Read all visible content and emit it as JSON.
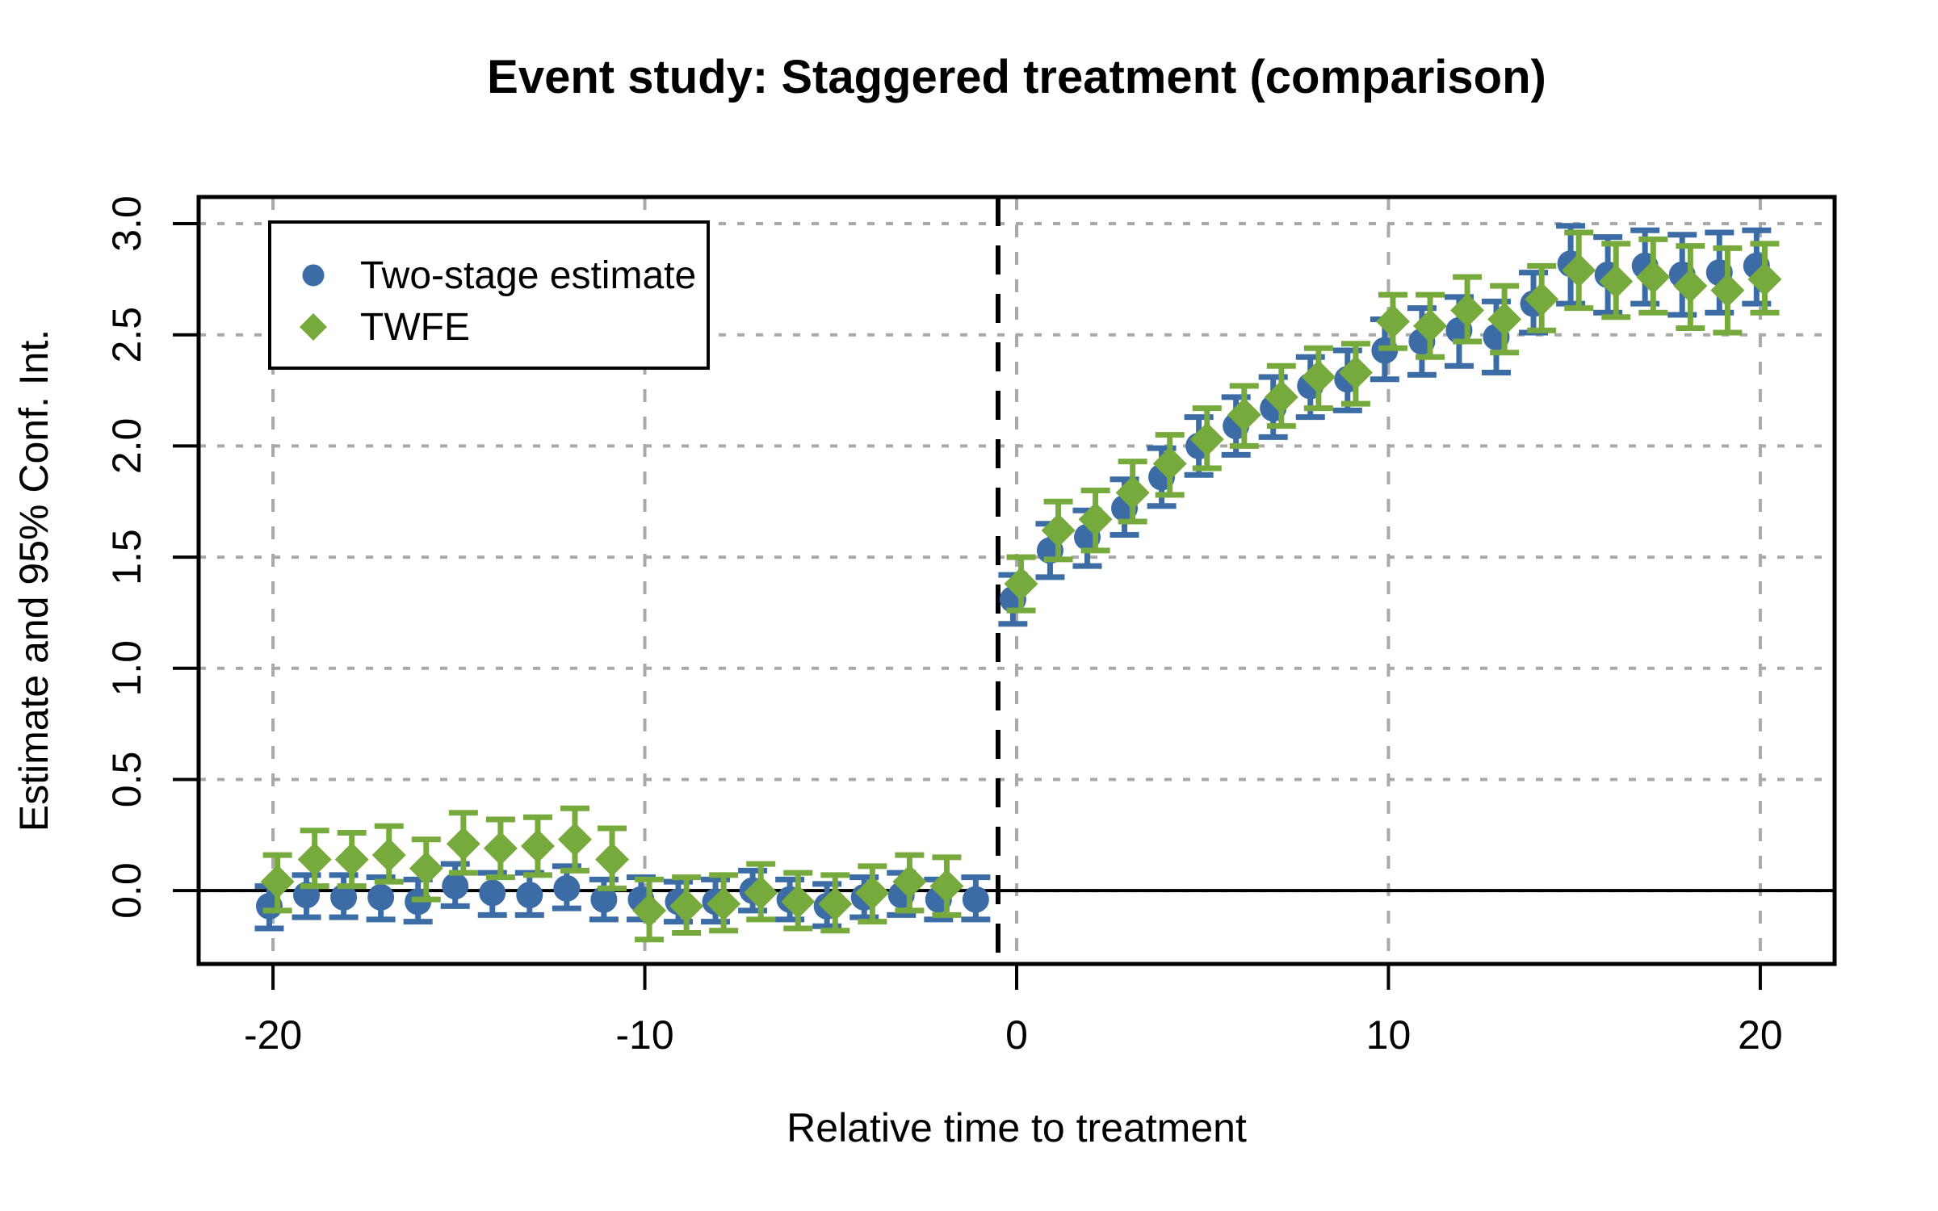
{
  "chart_data": {
    "type": "scatter",
    "title": "Event study: Staggered treatment (comparison)",
    "xlabel": "Relative time to treatment",
    "ylabel": "Estimate and 95% Conf. Int.",
    "xlim": [
      -22,
      22
    ],
    "ylim": [
      -0.33,
      3.12
    ],
    "x_ticks": [
      -20,
      -10,
      0,
      10,
      20
    ],
    "x_tick_labels": [
      "-20",
      "-10",
      "0",
      "10",
      "20"
    ],
    "y_ticks": [
      0.0,
      0.5,
      1.0,
      1.5,
      2.0,
      2.5,
      3.0
    ],
    "y_tick_labels": [
      "0.0",
      "0.5",
      "1.0",
      "1.5",
      "2.0",
      "2.5",
      "3.0"
    ],
    "grid": {
      "shown": true,
      "style": "dashed",
      "color": "#A9A9A9"
    },
    "reference_lines": {
      "zero_line_y": 0,
      "treatment_line_x": -0.5,
      "treatment_line_style": "dashed-black"
    },
    "legend": {
      "position": "top-left",
      "entries": [
        {
          "label": "Two-stage estimate",
          "marker": "circle",
          "color": "#3B6CA5"
        },
        {
          "label": "TWFE",
          "marker": "diamond",
          "color": "#77AA3C"
        }
      ]
    },
    "point_format": [
      "t",
      "estimate",
      "ci_low",
      "ci_high"
    ],
    "series": [
      {
        "name": "Two-stage estimate",
        "marker": "circle",
        "color": "#3B6CA5",
        "dodge": -0.1,
        "points": [
          [
            -20,
            -0.07,
            -0.17,
            0.02
          ],
          [
            -19,
            -0.02,
            -0.12,
            0.07
          ],
          [
            -18,
            -0.03,
            -0.12,
            0.07
          ],
          [
            -17,
            -0.03,
            -0.13,
            0.06
          ],
          [
            -16,
            -0.05,
            -0.14,
            0.05
          ],
          [
            -15,
            0.02,
            -0.07,
            0.12
          ],
          [
            -14,
            -0.01,
            -0.11,
            0.08
          ],
          [
            -13,
            -0.02,
            -0.11,
            0.08
          ],
          [
            -12,
            0.01,
            -0.08,
            0.11
          ],
          [
            -11,
            -0.04,
            -0.13,
            0.05
          ],
          [
            -10,
            -0.04,
            -0.13,
            0.06
          ],
          [
            -9,
            -0.05,
            -0.14,
            0.04
          ],
          [
            -8,
            -0.05,
            -0.14,
            0.05
          ],
          [
            -7,
            0.0,
            -0.09,
            0.09
          ],
          [
            -6,
            -0.04,
            -0.13,
            0.05
          ],
          [
            -5,
            -0.07,
            -0.16,
            0.03
          ],
          [
            -4,
            -0.03,
            -0.12,
            0.06
          ],
          [
            -3,
            -0.02,
            -0.11,
            0.08
          ],
          [
            -2,
            -0.04,
            -0.13,
            0.05
          ],
          [
            -1,
            -0.04,
            -0.13,
            0.06
          ],
          [
            0,
            1.31,
            1.2,
            1.42
          ],
          [
            1,
            1.53,
            1.41,
            1.65
          ],
          [
            2,
            1.59,
            1.46,
            1.71
          ],
          [
            3,
            1.72,
            1.6,
            1.85
          ],
          [
            4,
            1.86,
            1.73,
            1.99
          ],
          [
            5,
            2.0,
            1.87,
            2.13
          ],
          [
            6,
            2.09,
            1.96,
            2.22
          ],
          [
            7,
            2.17,
            2.04,
            2.31
          ],
          [
            8,
            2.27,
            2.13,
            2.4
          ],
          [
            9,
            2.3,
            2.16,
            2.43
          ],
          [
            10,
            2.43,
            2.3,
            2.57
          ],
          [
            11,
            2.47,
            2.32,
            2.62
          ],
          [
            12,
            2.52,
            2.36,
            2.67
          ],
          [
            13,
            2.49,
            2.33,
            2.65
          ],
          [
            14,
            2.64,
            2.51,
            2.78
          ],
          [
            15,
            2.82,
            2.64,
            2.99
          ],
          [
            16,
            2.77,
            2.6,
            2.94
          ],
          [
            17,
            2.81,
            2.64,
            2.97
          ],
          [
            18,
            2.77,
            2.59,
            2.95
          ],
          [
            19,
            2.78,
            2.6,
            2.96
          ],
          [
            20,
            2.81,
            2.64,
            2.97
          ]
        ]
      },
      {
        "name": "TWFE",
        "marker": "diamond",
        "color": "#77AA3C",
        "dodge": 0.12,
        "points": [
          [
            -20,
            0.04,
            -0.09,
            0.16
          ],
          [
            -19,
            0.14,
            0.02,
            0.27
          ],
          [
            -18,
            0.14,
            0.02,
            0.26
          ],
          [
            -17,
            0.16,
            0.04,
            0.29
          ],
          [
            -16,
            0.1,
            -0.04,
            0.23
          ],
          [
            -15,
            0.21,
            0.08,
            0.35
          ],
          [
            -14,
            0.19,
            0.06,
            0.32
          ],
          [
            -13,
            0.2,
            0.07,
            0.33
          ],
          [
            -12,
            0.23,
            0.09,
            0.37
          ],
          [
            -11,
            0.14,
            0.01,
            0.28
          ],
          [
            -10,
            -0.09,
            -0.22,
            0.05
          ],
          [
            -9,
            -0.07,
            -0.19,
            0.06
          ],
          [
            -8,
            -0.06,
            -0.18,
            0.07
          ],
          [
            -7,
            -0.01,
            -0.13,
            0.12
          ],
          [
            -6,
            -0.05,
            -0.17,
            0.08
          ],
          [
            -5,
            -0.06,
            -0.18,
            0.07
          ],
          [
            -4,
            -0.01,
            -0.14,
            0.11
          ],
          [
            -3,
            0.04,
            -0.09,
            0.16
          ],
          [
            -2,
            0.02,
            -0.11,
            0.15
          ],
          [
            0,
            1.38,
            1.26,
            1.5
          ],
          [
            1,
            1.62,
            1.49,
            1.75
          ],
          [
            2,
            1.67,
            1.53,
            1.8
          ],
          [
            3,
            1.79,
            1.66,
            1.93
          ],
          [
            4,
            1.92,
            1.78,
            2.05
          ],
          [
            5,
            2.03,
            1.9,
            2.17
          ],
          [
            6,
            2.14,
            2.0,
            2.27
          ],
          [
            7,
            2.22,
            2.09,
            2.36
          ],
          [
            8,
            2.31,
            2.17,
            2.44
          ],
          [
            9,
            2.33,
            2.19,
            2.46
          ],
          [
            10,
            2.56,
            2.44,
            2.68
          ],
          [
            11,
            2.54,
            2.4,
            2.68
          ],
          [
            12,
            2.61,
            2.47,
            2.76
          ],
          [
            13,
            2.57,
            2.42,
            2.72
          ],
          [
            14,
            2.66,
            2.52,
            2.81
          ],
          [
            15,
            2.79,
            2.62,
            2.96
          ],
          [
            16,
            2.74,
            2.58,
            2.91
          ],
          [
            17,
            2.76,
            2.6,
            2.93
          ],
          [
            18,
            2.72,
            2.53,
            2.9
          ],
          [
            19,
            2.7,
            2.51,
            2.89
          ],
          [
            20,
            2.75,
            2.6,
            2.91
          ]
        ]
      }
    ]
  }
}
